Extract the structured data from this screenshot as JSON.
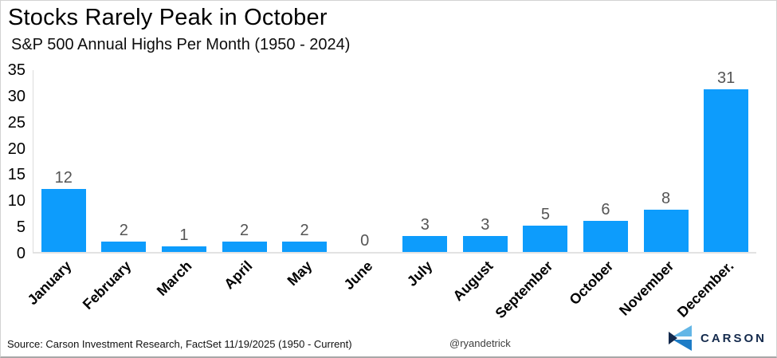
{
  "header": {
    "title": "Stocks Rarely Peak in October",
    "subtitle": "S&P 500 Annual Highs Per Month (1950 - 2024)"
  },
  "chart_data": {
    "type": "bar",
    "categories": [
      "January",
      "February",
      "March",
      "April",
      "May",
      "June",
      "July",
      "August",
      "September",
      "October",
      "November",
      "December."
    ],
    "values": [
      12,
      2,
      1,
      2,
      2,
      0,
      3,
      3,
      5,
      6,
      8,
      31
    ],
    "title": "Stocks Rarely Peak in October",
    "subtitle": "S&P 500 Annual Highs Per Month (1950 - 2024)",
    "xlabel": "",
    "ylabel": "",
    "ylim": [
      0,
      35
    ],
    "ytick_step": 5,
    "grid": false,
    "legend": false,
    "bar_color": "#0d9cfc",
    "value_label_color": "#555555",
    "axis_line_color": "#dcdcdc"
  },
  "footer": {
    "source": "Source: Carson Investment Research, FactSet 11/19/2025 (1950 - Current)",
    "credit": "@ryandetrick",
    "logo_text": "CARSON",
    "logo_colors": {
      "light": "#63b6e6",
      "mid": "#1d7cc6",
      "navy": "#13294d"
    }
  }
}
